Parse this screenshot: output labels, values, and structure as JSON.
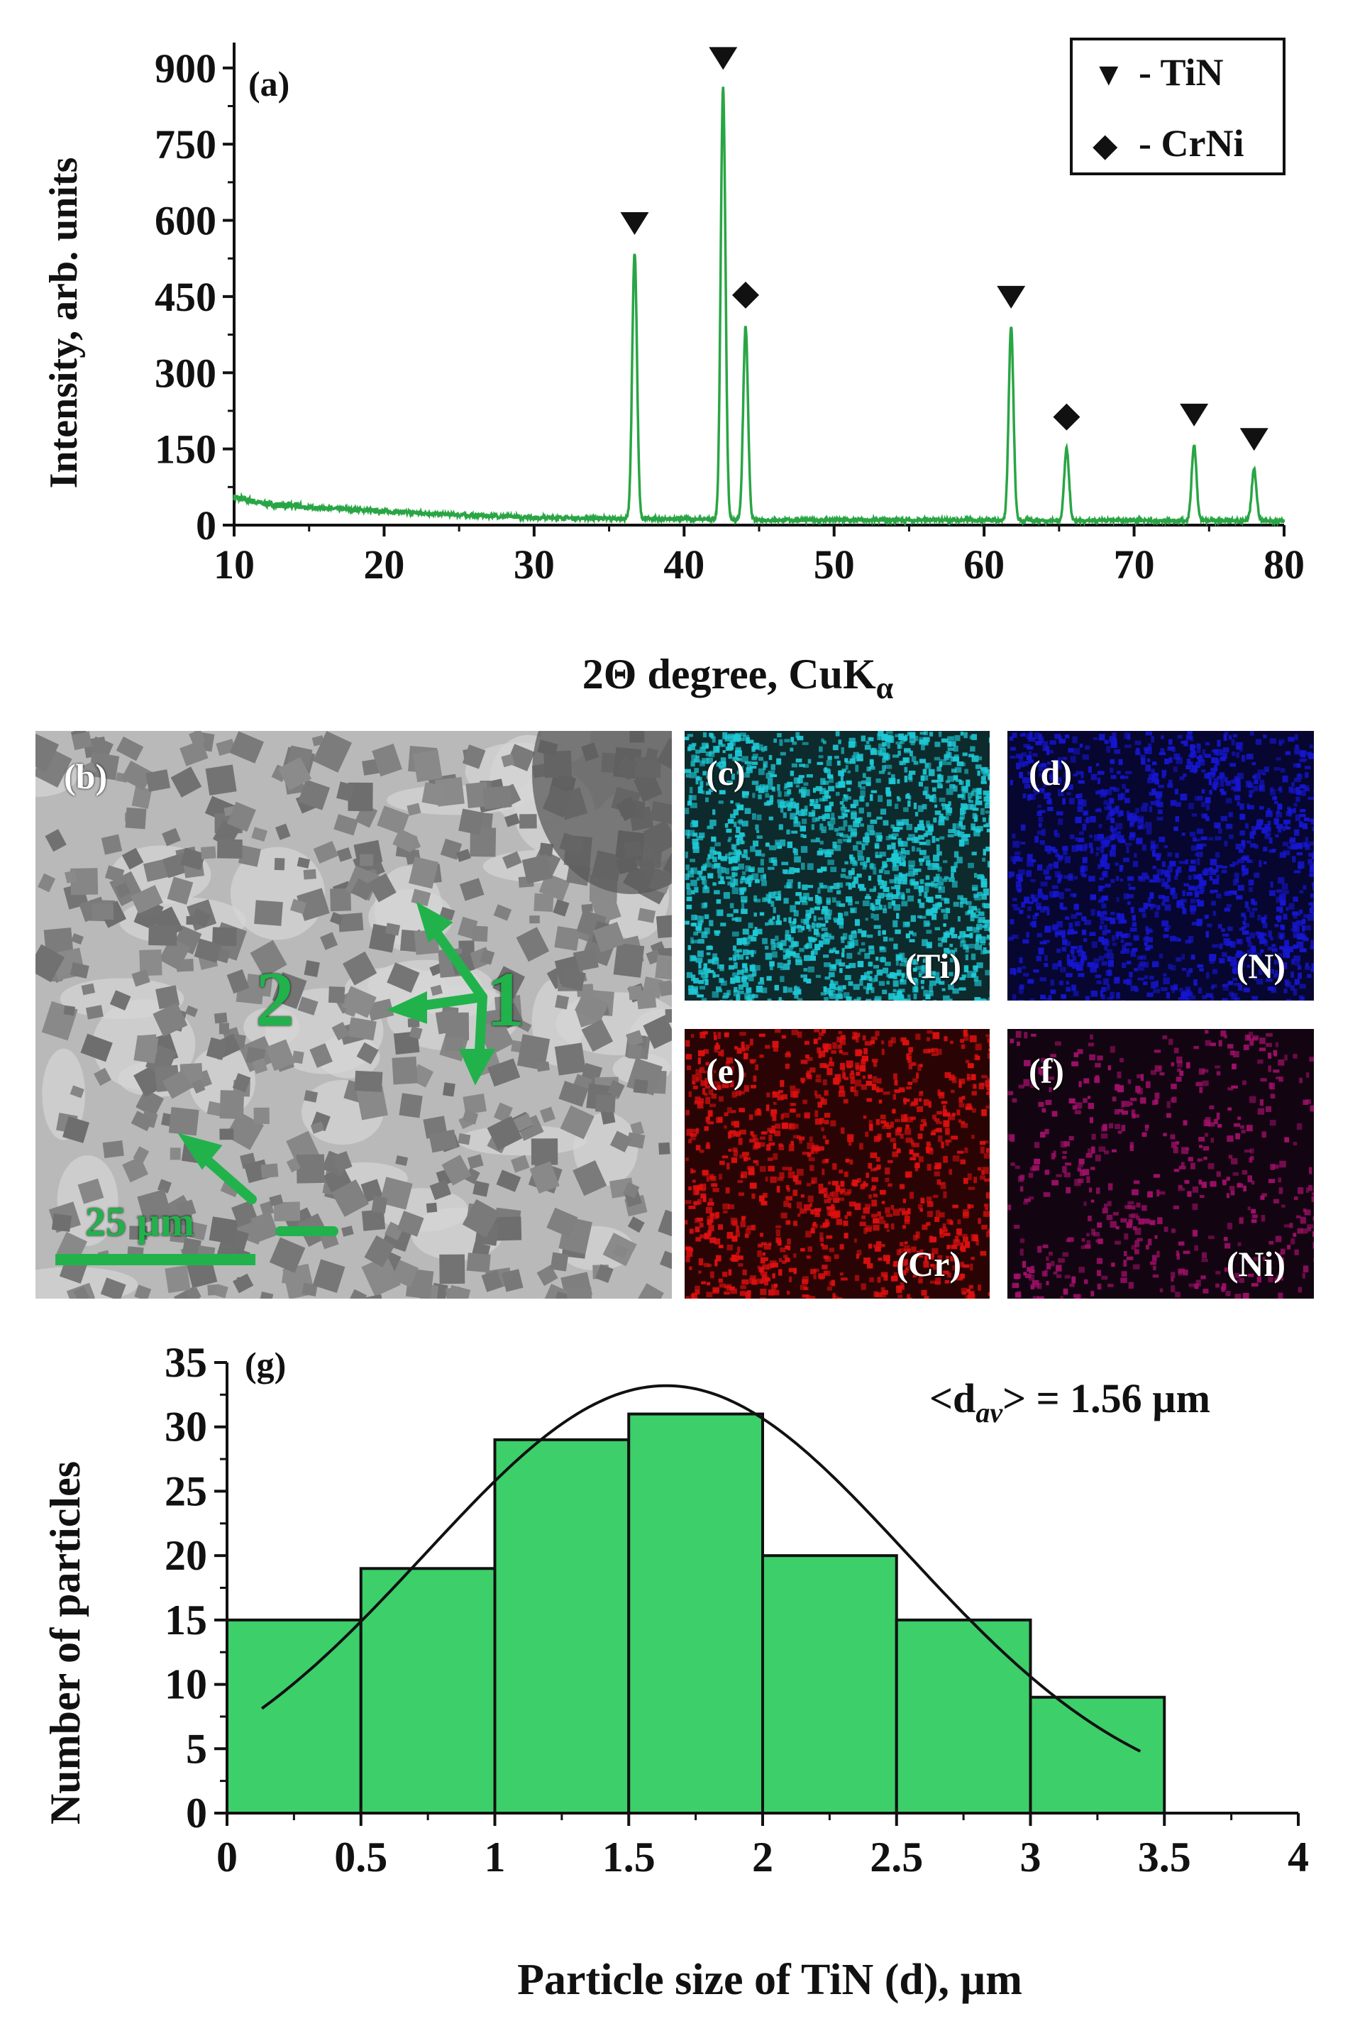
{
  "chart_data": [
    {
      "panel": "(a)",
      "type": "line",
      "title": "",
      "xlabel": "2Θ degree, CuK",
      "xlabel_sub": "α",
      "ylabel": "Intensity, arb. units",
      "xlim": [
        10,
        80
      ],
      "ylim": [
        0,
        950
      ],
      "xticks": [
        10,
        20,
        30,
        40,
        50,
        60,
        70,
        80
      ],
      "yticks": [
        0,
        150,
        300,
        450,
        600,
        750,
        900
      ],
      "line_color": "#2aa545",
      "baseline": [
        [
          10,
          55
        ],
        [
          12,
          42
        ],
        [
          15,
          35
        ],
        [
          20,
          27
        ],
        [
          25,
          20
        ],
        [
          30,
          15
        ],
        [
          35,
          13
        ],
        [
          40,
          12
        ],
        [
          45,
          10
        ],
        [
          50,
          10
        ],
        [
          55,
          10
        ],
        [
          60,
          10
        ],
        [
          65,
          9
        ],
        [
          70,
          9
        ],
        [
          75,
          9
        ],
        [
          80,
          8
        ]
      ],
      "peaks": [
        {
          "x": 36.7,
          "y": 535,
          "phase": "TiN"
        },
        {
          "x": 42.6,
          "y": 860,
          "phase": "TiN"
        },
        {
          "x": 44.1,
          "y": 390,
          "phase": "CrNi"
        },
        {
          "x": 61.8,
          "y": 390,
          "phase": "TiN"
        },
        {
          "x": 65.5,
          "y": 150,
          "phase": "CrNi"
        },
        {
          "x": 74.0,
          "y": 158,
          "phase": "TiN"
        },
        {
          "x": 78.0,
          "y": 110,
          "phase": "TiN"
        }
      ],
      "legend": [
        {
          "symbol": "▼",
          "label": "- TiN"
        },
        {
          "symbol": "◆",
          "label": "- CrNi"
        }
      ],
      "legend_position": "top-right"
    },
    {
      "panel": "(g)",
      "type": "bar",
      "xlabel": "Particle size of TiN (d), µm",
      "ylabel": "Number of particles",
      "annotation": "<d",
      "annotation_sub": "av",
      "annotation_tail": "> = 1.56 µm",
      "xlim": [
        0,
        4
      ],
      "ylim": [
        0,
        35
      ],
      "xticks": [
        "0",
        "0.5",
        "1",
        "1.5",
        "2",
        "2.5",
        "3",
        "3.5",
        "4"
      ],
      "yticks": [
        0,
        5,
        10,
        15,
        20,
        25,
        30,
        35
      ],
      "bin_edges": [
        0,
        0.5,
        1,
        1.5,
        2,
        2.5,
        3,
        3.5
      ],
      "values": [
        15,
        19,
        29,
        31,
        20,
        15,
        9
      ],
      "bar_color": "#3dcf6a",
      "fit": {
        "type": "gaussian",
        "amplitude": 33.2,
        "mean": 1.64,
        "sigma": 0.9,
        "x_range": [
          0.13,
          3.42
        ]
      }
    }
  ],
  "micrograph": {
    "panel_label": "(b)",
    "scale_bar": "25 µm",
    "phase_labels": [
      "1",
      "2"
    ]
  },
  "eds_maps": [
    {
      "panel_label": "(c)",
      "element": "(Ti)",
      "color": "#1ec9d6"
    },
    {
      "panel_label": "(d)",
      "element": "(N)",
      "color": "#1616d0"
    },
    {
      "panel_label": "(e)",
      "element": "(Cr)",
      "color": "#e01010"
    },
    {
      "panel_label": "(f)",
      "element": "(Ni)",
      "color": "#a0106a"
    }
  ]
}
